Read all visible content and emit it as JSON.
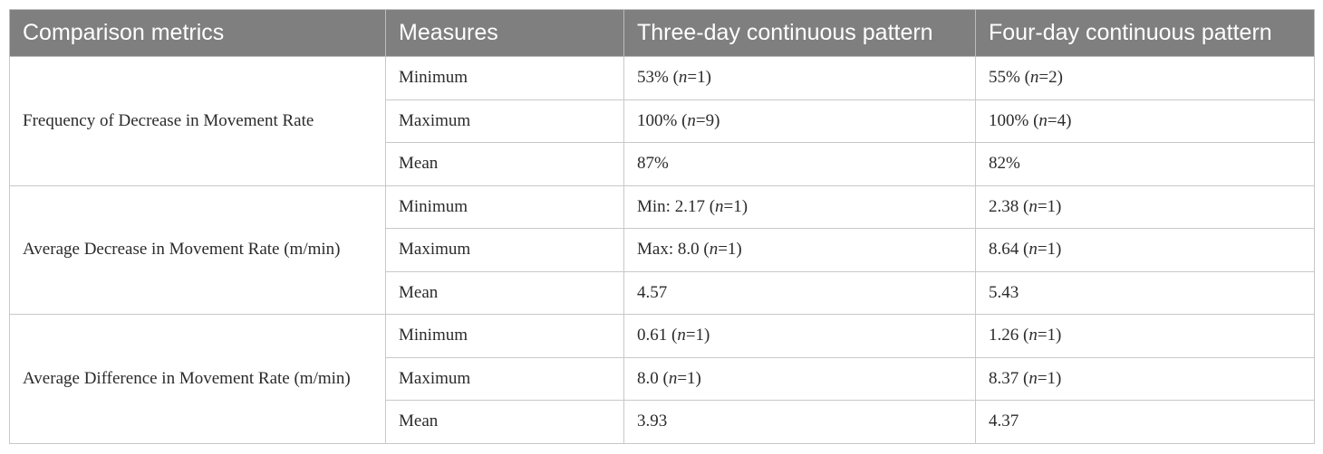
{
  "table": {
    "header": [
      "Comparison metrics",
      "Measures",
      "Three-day continuous pattern",
      "Four-day continuous pattern"
    ],
    "groups": [
      {
        "metric": "Frequency of Decrease in Movement Rate",
        "rows": [
          [
            "Minimum",
            "53% (n=1)",
            "55% (n=2)"
          ],
          [
            "Maximum",
            "100% (n=9)",
            "100% (n=4)"
          ],
          [
            "Mean",
            "87%",
            "82%"
          ]
        ]
      },
      {
        "metric": "Average Decrease in Movement Rate (m/min)",
        "rows": [
          [
            "Minimum",
            "Min: 2.17 (n=1)",
            "2.38 (n=1)"
          ],
          [
            "Maximum",
            "Max: 8.0 (n=1)",
            "8.64 (n=1)"
          ],
          [
            "Mean",
            "4.57",
            "5.43"
          ]
        ]
      },
      {
        "metric": "Average Difference in Movement Rate (m/min)",
        "rows": [
          [
            "Minimum",
            "0.61 (n=1)",
            "1.26 (n=1)"
          ],
          [
            "Maximum",
            "8.0 (n=1)",
            "8.37 (n=1)"
          ],
          [
            "Mean",
            "3.93",
            "4.37"
          ]
        ]
      }
    ]
  }
}
